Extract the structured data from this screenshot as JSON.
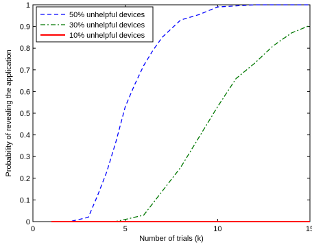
{
  "chart_data": {
    "type": "line",
    "title": "",
    "xlabel": "Number of trials (k)",
    "ylabel": "Probability of revealing the application",
    "xlim": [
      0,
      15
    ],
    "ylim": [
      0,
      1
    ],
    "xticks": [
      0,
      5,
      10,
      15
    ],
    "yticks": [
      0,
      0.1,
      0.2,
      0.3,
      0.4,
      0.5,
      0.6,
      0.7,
      0.8,
      0.9,
      1
    ],
    "grid": false,
    "legend_position": "top-left",
    "series": [
      {
        "name": "50% unhelpful devices",
        "color": "#0000ff",
        "dash": "dashed",
        "x": [
          1,
          2,
          2.5,
          3,
          3.5,
          4,
          4.5,
          5,
          5.5,
          6,
          6.5,
          7,
          8,
          9,
          10,
          11,
          12,
          13,
          14,
          15
        ],
        "y": [
          0,
          0,
          0.01,
          0.02,
          0.12,
          0.23,
          0.37,
          0.53,
          0.63,
          0.72,
          0.79,
          0.85,
          0.93,
          0.955,
          0.99,
          0.995,
          1,
          1,
          1,
          1
        ]
      },
      {
        "name": "30% unhelpful devices",
        "color": "#007700",
        "dash": "dashdot",
        "x": [
          1,
          4,
          4.5,
          5,
          6,
          7,
          8,
          9,
          10,
          11,
          12,
          13,
          14,
          15
        ],
        "y": [
          0,
          0,
          0.001,
          0.01,
          0.03,
          0.14,
          0.25,
          0.39,
          0.53,
          0.66,
          0.73,
          0.81,
          0.87,
          0.905
        ]
      },
      {
        "name": "10% unhelpful devices",
        "color": "#ff0000",
        "dash": "solid",
        "x": [
          1,
          15
        ],
        "y": [
          0,
          0
        ]
      }
    ]
  }
}
